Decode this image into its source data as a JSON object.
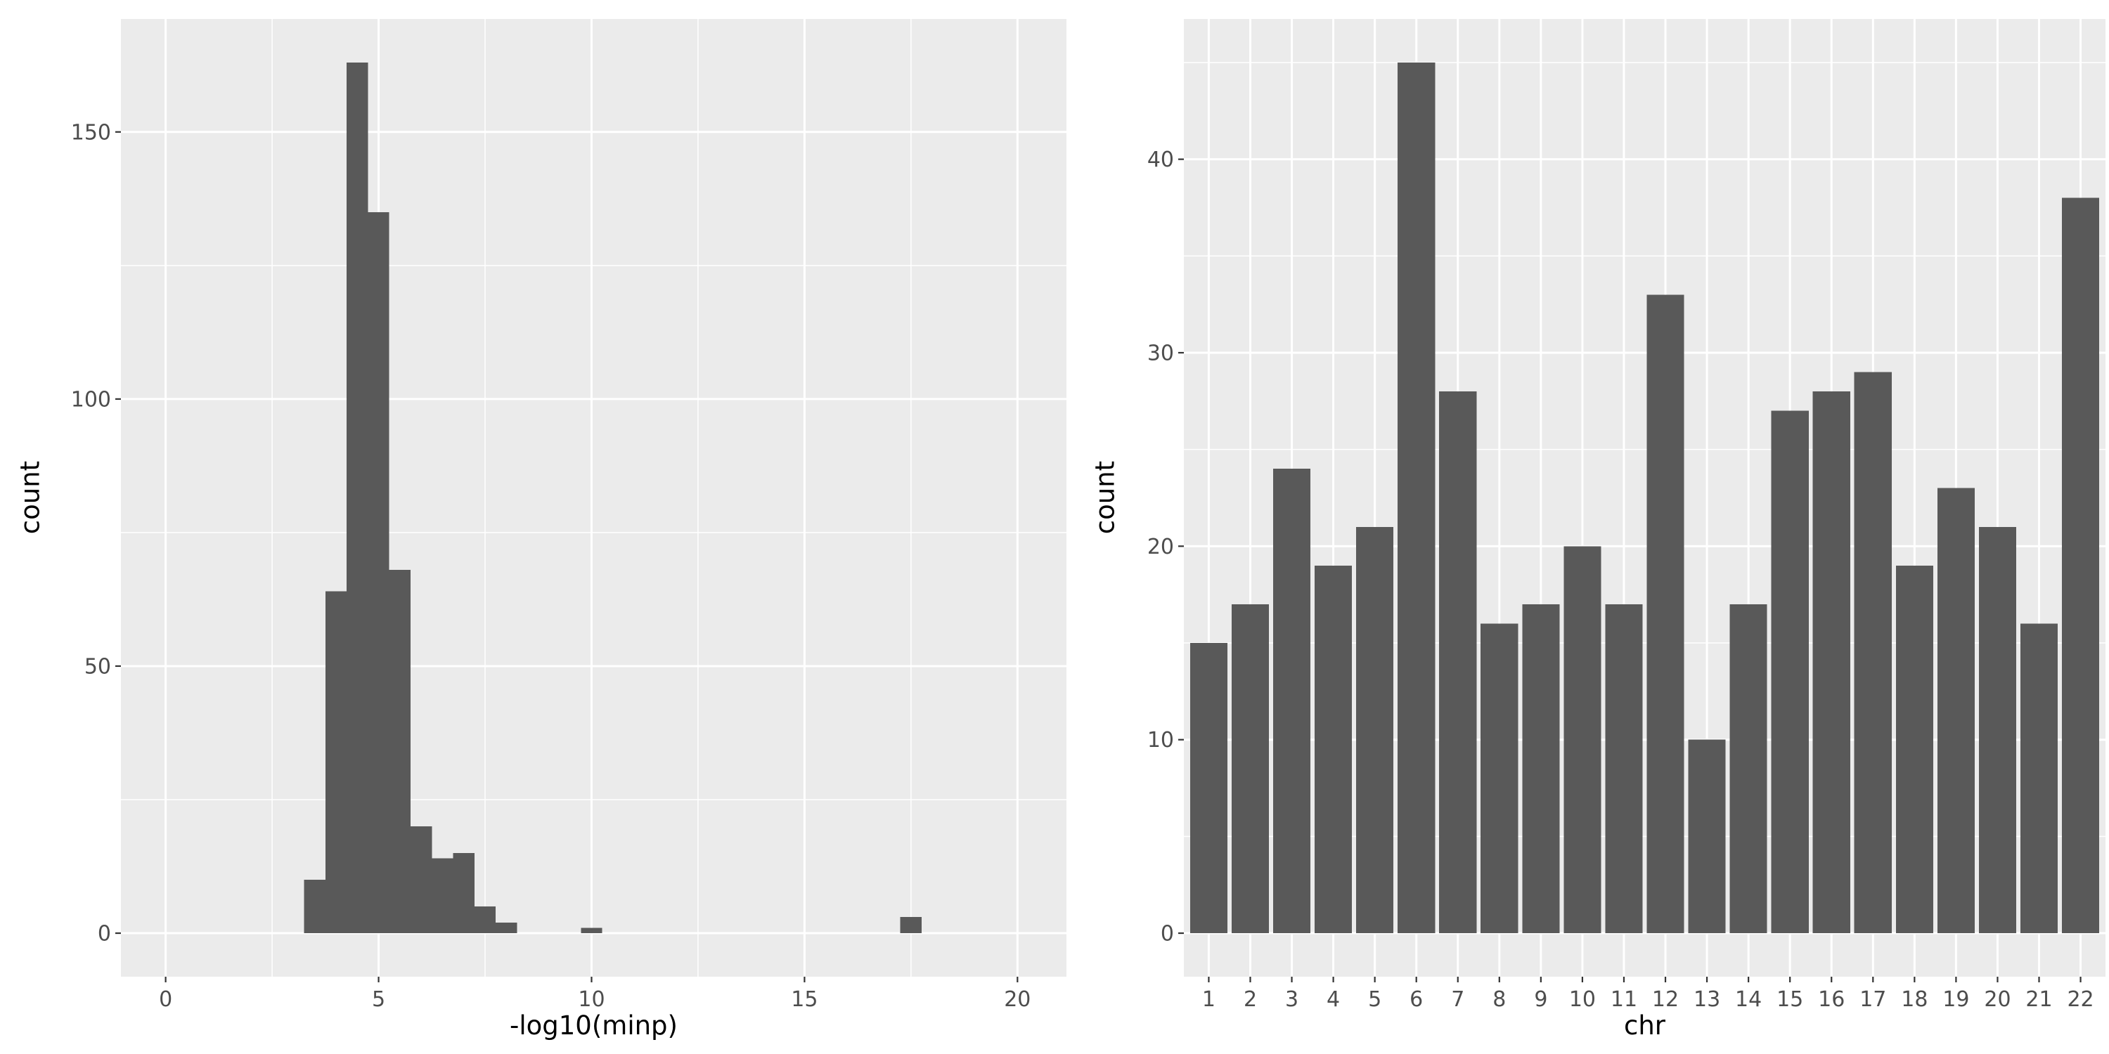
{
  "theme": {
    "page_bg": "#FFFFFF",
    "panel_bg": "#EBEBEB",
    "grid_major": "#FFFFFF",
    "grid_minor": "#FFFFFF",
    "bar_fill": "#595959",
    "axis_text": "#4D4D4D",
    "axis_title": "#000000",
    "tick_color": "#333333"
  },
  "chart_data": [
    {
      "type": "bar",
      "subtype": "histogram",
      "title": "",
      "xlabel": "-log10(minp)",
      "ylabel": "count",
      "xlim": [
        -1.05,
        21.15
      ],
      "ylim": [
        -8.15,
        171.15
      ],
      "x_ticks": [
        0,
        5,
        10,
        15,
        20
      ],
      "y_ticks": [
        0,
        50,
        100,
        150
      ],
      "x_minor_ticks": [
        2.5,
        7.5,
        12.5,
        17.5
      ],
      "y_minor_ticks": [
        25,
        75,
        125
      ],
      "grid": true,
      "legend": "none",
      "bins": [
        {
          "x0": 3.25,
          "x1": 3.75,
          "count": 10
        },
        {
          "x0": 3.75,
          "x1": 4.25,
          "count": 64
        },
        {
          "x0": 4.25,
          "x1": 4.75,
          "count": 163
        },
        {
          "x0": 4.75,
          "x1": 5.25,
          "count": 135
        },
        {
          "x0": 5.25,
          "x1": 5.75,
          "count": 68
        },
        {
          "x0": 5.75,
          "x1": 6.25,
          "count": 20
        },
        {
          "x0": 6.25,
          "x1": 6.75,
          "count": 14
        },
        {
          "x0": 6.75,
          "x1": 7.25,
          "count": 15
        },
        {
          "x0": 7.25,
          "x1": 7.75,
          "count": 5
        },
        {
          "x0": 7.75,
          "x1": 8.25,
          "count": 2
        },
        {
          "x0": 9.75,
          "x1": 10.25,
          "count": 1
        },
        {
          "x0": 17.25,
          "x1": 17.75,
          "count": 3
        }
      ]
    },
    {
      "type": "bar",
      "title": "",
      "xlabel": "chr",
      "ylabel": "count",
      "categories": [
        "1",
        "2",
        "3",
        "4",
        "5",
        "6",
        "7",
        "8",
        "9",
        "10",
        "11",
        "12",
        "13",
        "14",
        "15",
        "16",
        "17",
        "18",
        "19",
        "20",
        "21",
        "22"
      ],
      "values": [
        15,
        17,
        24,
        19,
        21,
        45,
        28,
        16,
        17,
        20,
        17,
        33,
        10,
        17,
        27,
        28,
        29,
        19,
        23,
        21,
        16,
        38
      ],
      "bar_width": 0.9,
      "xlim": [
        0.4,
        22.6
      ],
      "ylim": [
        -2.25,
        47.25
      ],
      "y_ticks": [
        0,
        10,
        20,
        30,
        40
      ],
      "y_minor_ticks": [
        5,
        15,
        25,
        35,
        45
      ],
      "grid": true,
      "legend": "none"
    }
  ]
}
